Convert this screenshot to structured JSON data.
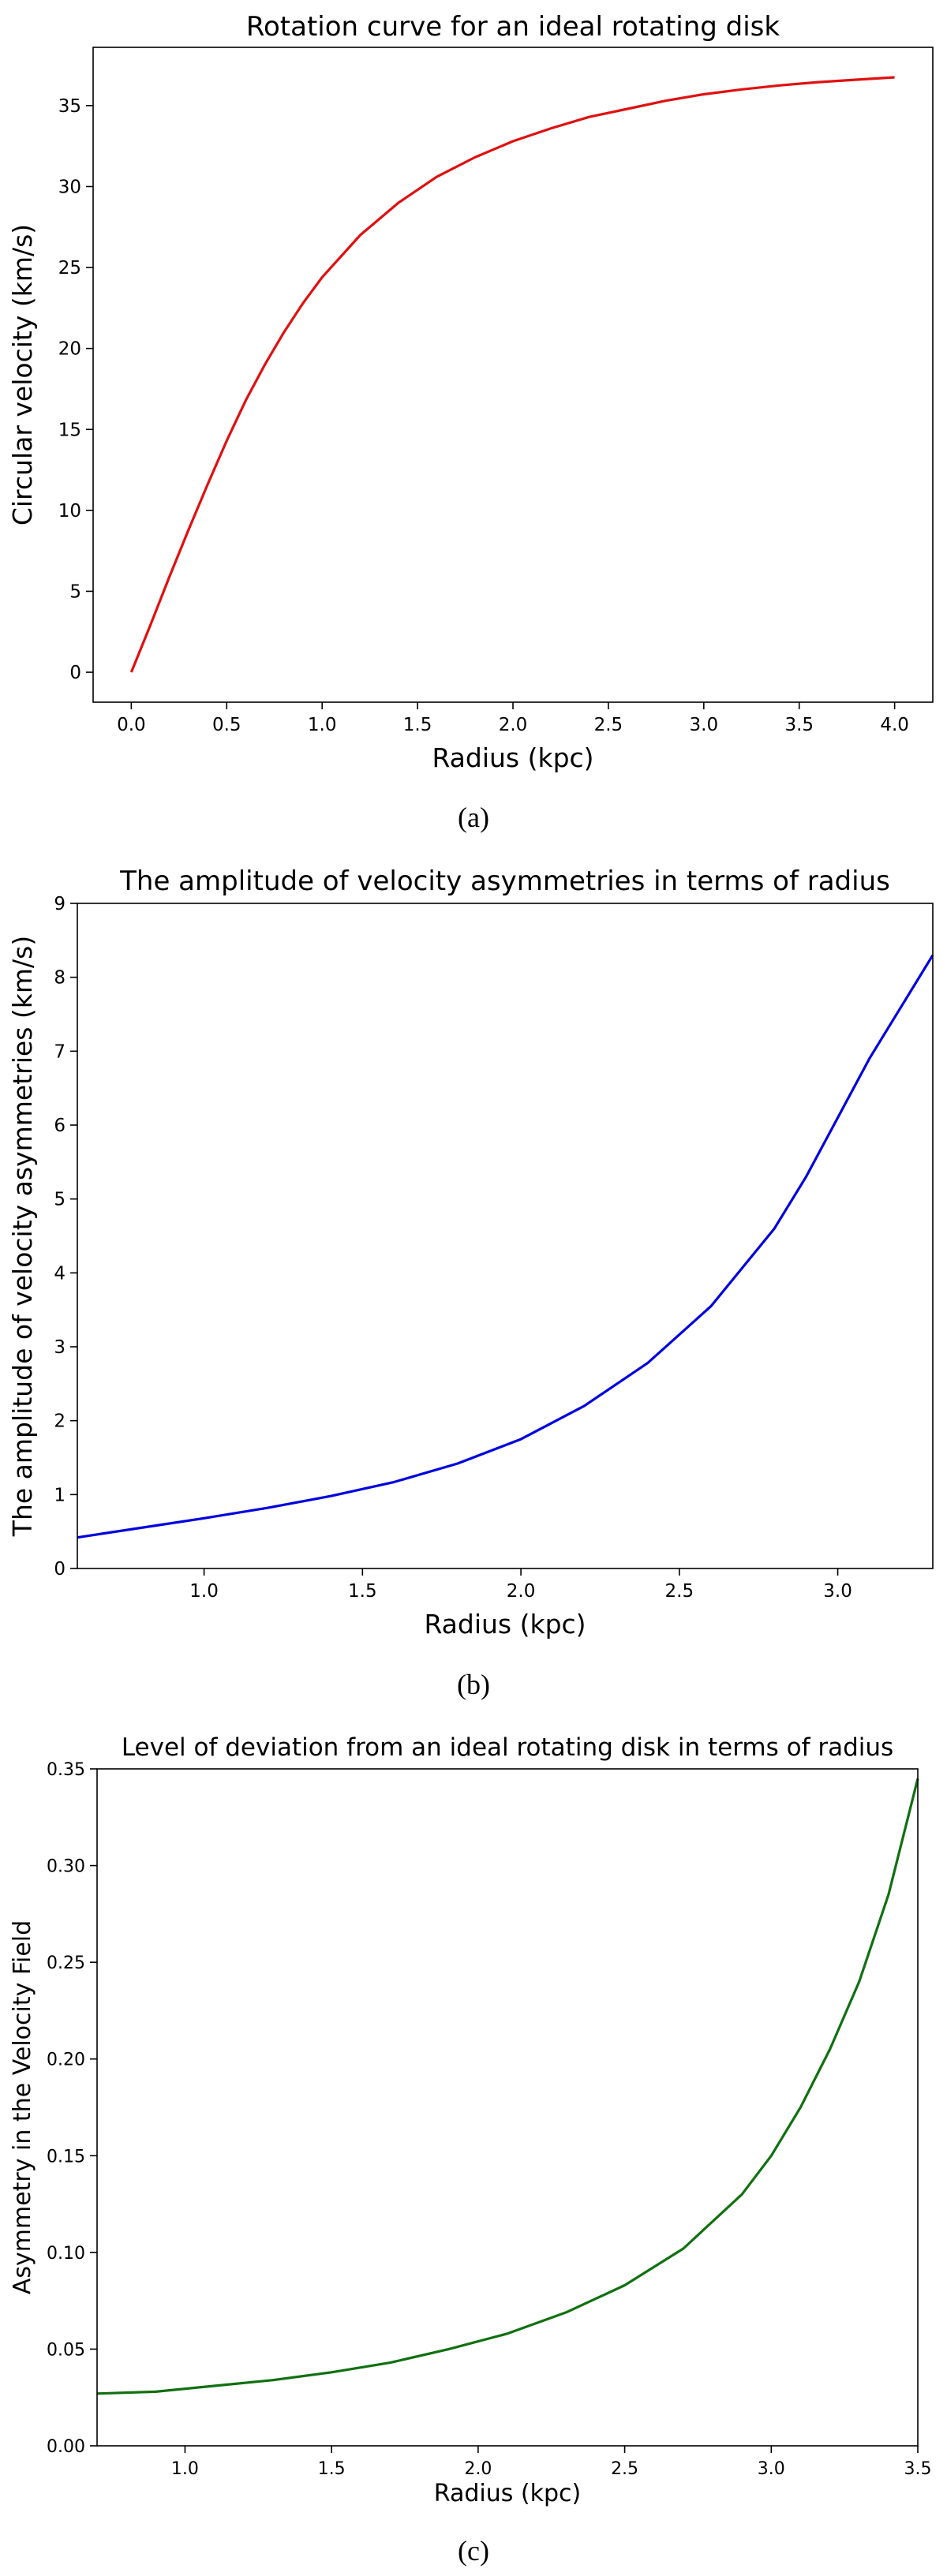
{
  "chart_data": [
    {
      "type": "line",
      "title": "Rotation curve for an ideal rotating disk",
      "xlabel": "Radius (kpc)",
      "ylabel": "Circular velocity (km/s)",
      "xlim": [
        -0.2,
        4.2
      ],
      "ylim": [
        -1.85,
        38.6
      ],
      "xticks": [
        0.0,
        0.5,
        1.0,
        1.5,
        2.0,
        2.5,
        3.0,
        3.5,
        4.0
      ],
      "xtick_labels": [
        "0.0",
        "0.5",
        "1.0",
        "1.5",
        "2.0",
        "2.5",
        "3.0",
        "3.5",
        "4.0"
      ],
      "yticks": [
        0,
        5,
        10,
        15,
        20,
        25,
        30,
        35
      ],
      "ytick_labels": [
        "0",
        "5",
        "10",
        "15",
        "20",
        "25",
        "30",
        "35"
      ],
      "grid": false,
      "caption": "(a)",
      "series": [
        {
          "color": "#e01010",
          "x": [
            0.0,
            0.1,
            0.2,
            0.3,
            0.4,
            0.5,
            0.6,
            0.7,
            0.8,
            0.9,
            1.0,
            1.2,
            1.4,
            1.6,
            1.8,
            2.0,
            2.2,
            2.4,
            2.6,
            2.8,
            3.0,
            3.2,
            3.4,
            3.6,
            3.8,
            4.0
          ],
          "y": [
            0.0,
            2.9,
            5.9,
            8.8,
            11.6,
            14.3,
            16.8,
            19.0,
            21.0,
            22.8,
            24.4,
            27.0,
            29.0,
            30.6,
            31.8,
            32.8,
            33.6,
            34.3,
            34.8,
            35.3,
            35.7,
            36.0,
            36.25,
            36.45,
            36.6,
            36.75
          ]
        }
      ]
    },
    {
      "type": "line",
      "title": "The amplitude of velocity asymmetries in terms of radius",
      "xlabel": "Radius (kpc)",
      "ylabel": "The amplitude of velocity asymmetries (km/s)",
      "xlim": [
        0.6,
        3.3
      ],
      "ylim": [
        0,
        9
      ],
      "xticks": [
        1.0,
        1.5,
        2.0,
        2.5,
        3.0
      ],
      "xtick_labels": [
        "1.0",
        "1.5",
        "2.0",
        "2.5",
        "3.0"
      ],
      "yticks": [
        0,
        1,
        2,
        3,
        4,
        5,
        6,
        7,
        8,
        9
      ],
      "ytick_labels": [
        "0",
        "1",
        "2",
        "3",
        "4",
        "5",
        "6",
        "7",
        "8",
        "9"
      ],
      "grid": false,
      "caption": "(b)",
      "series": [
        {
          "color": "#0000e0",
          "x": [
            0.6,
            0.8,
            1.0,
            1.2,
            1.4,
            1.6,
            1.8,
            2.0,
            2.2,
            2.4,
            2.6,
            2.8,
            2.9,
            3.0,
            3.1,
            3.2,
            3.3
          ],
          "y": [
            0.42,
            0.55,
            0.68,
            0.82,
            0.98,
            1.17,
            1.42,
            1.75,
            2.2,
            2.78,
            3.55,
            4.6,
            5.3,
            6.1,
            6.9,
            7.6,
            8.3
          ]
        }
      ]
    },
    {
      "type": "line",
      "title": "Level of deviation from an ideal rotating disk in terms of radius",
      "xlabel": "Radius (kpc)",
      "ylabel": "Asymmetry in the Velocity Field",
      "xlim": [
        0.7,
        3.5
      ],
      "ylim": [
        0,
        0.35
      ],
      "xticks": [
        1.0,
        1.5,
        2.0,
        2.5,
        3.0,
        3.5
      ],
      "xtick_labels": [
        "1.0",
        "1.5",
        "2.0",
        "2.5",
        "3.0",
        "3.5"
      ],
      "yticks": [
        0.0,
        0.05,
        0.1,
        0.15,
        0.2,
        0.25,
        0.3,
        0.35
      ],
      "ytick_labels": [
        "0.00",
        "0.05",
        "0.10",
        "0.15",
        "0.20",
        "0.25",
        "0.30",
        "0.35"
      ],
      "grid": false,
      "caption": "(c)",
      "series": [
        {
          "color": "#107010",
          "x": [
            0.7,
            0.9,
            1.1,
            1.3,
            1.5,
            1.7,
            1.9,
            2.1,
            2.3,
            2.5,
            2.7,
            2.9,
            3.0,
            3.1,
            3.2,
            3.3,
            3.4,
            3.5
          ],
          "y": [
            0.027,
            0.028,
            0.031,
            0.034,
            0.038,
            0.043,
            0.05,
            0.058,
            0.069,
            0.083,
            0.102,
            0.13,
            0.15,
            0.175,
            0.205,
            0.24,
            0.285,
            0.345
          ]
        }
      ]
    }
  ]
}
